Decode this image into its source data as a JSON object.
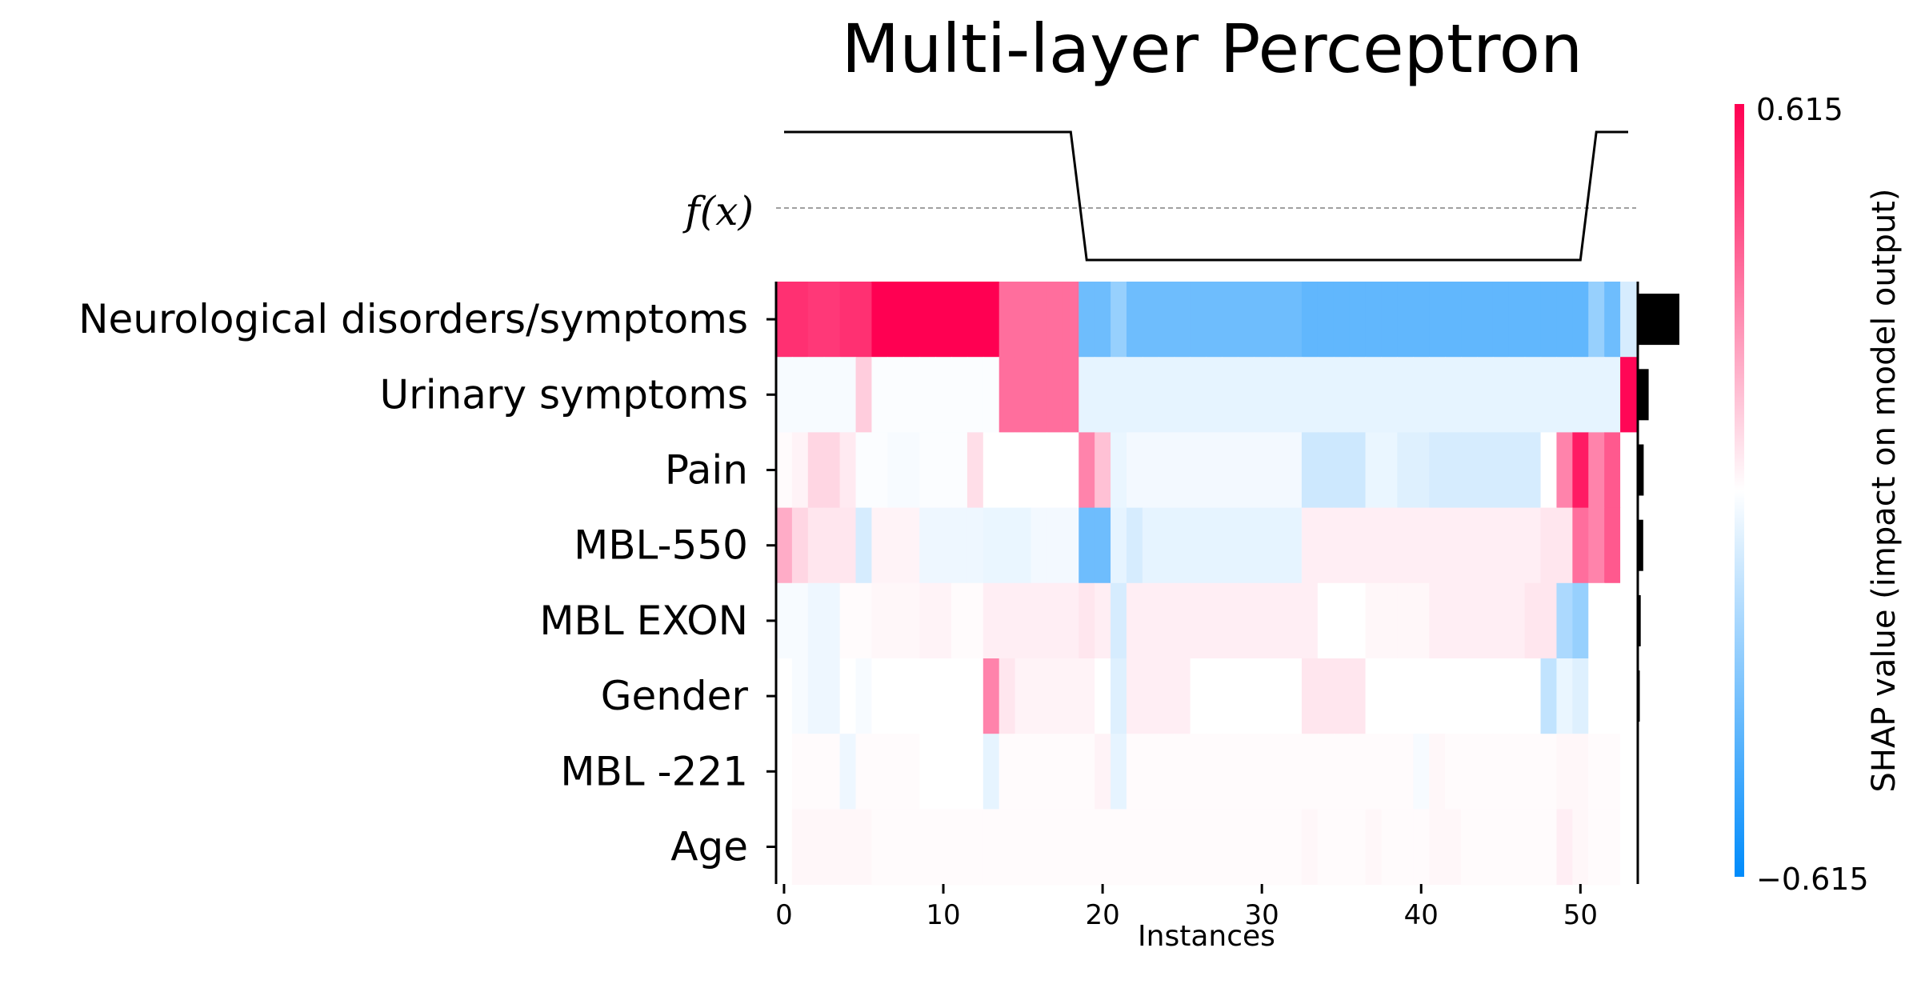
{
  "chart_data": {
    "type": "heatmap",
    "title": "Multi-layer Perceptron",
    "xlabel": "Instances",
    "fx_label": "f(x)",
    "xlim": [
      -0.5,
      53.5
    ],
    "xticks": [
      0,
      10,
      20,
      30,
      40,
      50
    ],
    "xtick_labels": [
      "0",
      "10",
      "20",
      "30",
      "40",
      "50"
    ],
    "colorbar": {
      "label": "SHAP value (impact on model output)",
      "max_label": "0.615",
      "min_label": "−0.615",
      "vmin": -0.615,
      "vmax": 0.615,
      "color_low": "#008bfb",
      "color_mid": "#ffffff",
      "color_high": "#ff0052"
    },
    "features": [
      "Neurological disorders/symptoms",
      "Urinary symptoms",
      "Pain",
      "MBL-550",
      "MBL EXON",
      "Gender",
      "MBL -221",
      "Age"
    ],
    "mean_abs_shap": [
      0.42,
      0.11,
      0.06,
      0.055,
      0.03,
      0.02,
      0.012,
      0.006
    ],
    "fx_levels": "high for instances 0-18 and 51-53, low for instances 19-50",
    "fx_values": [
      0.9,
      0.9,
      0.9,
      0.9,
      0.9,
      0.9,
      0.9,
      0.9,
      0.9,
      0.9,
      0.9,
      0.9,
      0.9,
      0.9,
      0.9,
      0.9,
      0.9,
      0.9,
      0.9,
      0.1,
      0.1,
      0.1,
      0.1,
      0.1,
      0.1,
      0.1,
      0.1,
      0.1,
      0.1,
      0.1,
      0.1,
      0.1,
      0.1,
      0.1,
      0.1,
      0.1,
      0.1,
      0.1,
      0.1,
      0.1,
      0.1,
      0.1,
      0.1,
      0.1,
      0.1,
      0.1,
      0.1,
      0.1,
      0.1,
      0.1,
      0.1,
      0.9,
      0.9,
      0.9
    ],
    "values": [
      [
        0.5,
        0.5,
        0.48,
        0.48,
        0.5,
        0.5,
        0.615,
        0.615,
        0.615,
        0.615,
        0.615,
        0.615,
        0.615,
        0.615,
        0.35,
        0.35,
        0.35,
        0.35,
        0.35,
        -0.35,
        -0.35,
        -0.25,
        -0.35,
        -0.35,
        -0.35,
        -0.35,
        -0.35,
        -0.35,
        -0.35,
        -0.35,
        -0.35,
        -0.35,
        -0.35,
        -0.38,
        -0.38,
        -0.38,
        -0.38,
        -0.38,
        -0.38,
        -0.38,
        -0.38,
        -0.38,
        -0.38,
        -0.38,
        -0.38,
        -0.38,
        -0.38,
        -0.38,
        -0.38,
        -0.38,
        -0.38,
        -0.25,
        -0.35,
        -0.1
      ],
      [
        -0.02,
        -0.02,
        -0.02,
        -0.02,
        -0.02,
        0.12,
        -0.01,
        -0.01,
        -0.01,
        -0.01,
        -0.01,
        -0.01,
        -0.01,
        -0.01,
        0.35,
        0.35,
        0.35,
        0.35,
        0.35,
        -0.06,
        -0.06,
        -0.06,
        -0.06,
        -0.06,
        -0.06,
        -0.06,
        -0.06,
        -0.06,
        -0.06,
        -0.06,
        -0.06,
        -0.06,
        -0.06,
        -0.06,
        -0.06,
        -0.06,
        -0.06,
        -0.06,
        -0.06,
        -0.06,
        -0.06,
        -0.06,
        -0.06,
        -0.06,
        -0.06,
        -0.06,
        -0.06,
        -0.06,
        -0.06,
        -0.06,
        -0.06,
        -0.06,
        -0.06,
        0.6
      ],
      [
        0.01,
        0.03,
        0.1,
        0.1,
        0.05,
        -0.01,
        -0.01,
        -0.02,
        -0.02,
        -0.01,
        -0.01,
        -0.01,
        0.08,
        0.0,
        0.0,
        0.0,
        0.0,
        0.0,
        0.0,
        0.3,
        0.15,
        -0.05,
        -0.03,
        -0.03,
        -0.03,
        -0.03,
        -0.03,
        -0.03,
        -0.03,
        -0.03,
        -0.03,
        -0.03,
        -0.03,
        -0.12,
        -0.12,
        -0.12,
        -0.12,
        -0.05,
        -0.05,
        -0.08,
        -0.08,
        -0.1,
        -0.1,
        -0.1,
        -0.1,
        -0.1,
        -0.1,
        -0.1,
        0.0,
        0.3,
        0.55,
        0.3,
        0.4,
        0.0
      ],
      [
        0.2,
        0.1,
        0.06,
        0.06,
        0.06,
        -0.1,
        0.03,
        0.03,
        0.03,
        -0.04,
        -0.04,
        -0.04,
        -0.04,
        -0.05,
        -0.05,
        -0.05,
        -0.03,
        -0.03,
        -0.03,
        -0.35,
        -0.35,
        -0.06,
        -0.1,
        -0.06,
        -0.06,
        -0.06,
        -0.06,
        -0.06,
        -0.06,
        -0.06,
        -0.06,
        -0.06,
        -0.06,
        0.04,
        0.04,
        0.04,
        0.04,
        0.04,
        0.04,
        0.04,
        0.04,
        0.04,
        0.04,
        0.04,
        0.04,
        0.04,
        0.04,
        0.04,
        0.06,
        0.06,
        0.35,
        0.3,
        0.4,
        0.0
      ],
      [
        -0.02,
        -0.02,
        -0.04,
        -0.04,
        0.01,
        0.01,
        0.02,
        0.02,
        0.02,
        0.03,
        0.03,
        0.01,
        0.01,
        0.04,
        0.04,
        0.04,
        0.04,
        0.04,
        0.04,
        0.06,
        0.04,
        -0.1,
        0.04,
        0.04,
        0.04,
        0.04,
        0.04,
        0.04,
        0.04,
        0.04,
        0.04,
        0.04,
        0.04,
        0.04,
        0.0,
        0.0,
        0.0,
        0.02,
        0.02,
        0.02,
        0.02,
        0.04,
        0.04,
        0.04,
        0.04,
        0.04,
        0.04,
        0.06,
        0.06,
        -0.2,
        -0.25,
        0.0,
        0.0,
        0.0
      ],
      [
        0.0,
        -0.02,
        -0.04,
        -0.04,
        0.0,
        -0.02,
        0.0,
        0.0,
        0.0,
        0.0,
        0.0,
        0.0,
        0.0,
        0.3,
        0.06,
        0.03,
        0.03,
        0.03,
        0.03,
        0.03,
        0.0,
        -0.08,
        0.04,
        0.04,
        0.04,
        0.04,
        0.0,
        0.0,
        0.0,
        0.0,
        0.0,
        0.0,
        0.0,
        0.06,
        0.06,
        0.06,
        0.06,
        0.0,
        0.0,
        0.0,
        0.0,
        0.0,
        0.0,
        0.0,
        0.0,
        0.0,
        0.0,
        0.0,
        -0.15,
        -0.05,
        -0.08,
        0.0,
        0.0,
        0.0
      ],
      [
        0.0,
        0.01,
        0.01,
        0.01,
        -0.04,
        0.01,
        0.01,
        0.01,
        0.01,
        0.0,
        0.0,
        0.0,
        0.0,
        -0.06,
        0.01,
        0.01,
        0.01,
        0.01,
        0.01,
        0.01,
        0.03,
        -0.06,
        0.01,
        0.01,
        0.01,
        0.01,
        0.01,
        0.01,
        0.01,
        0.01,
        0.01,
        0.01,
        0.01,
        0.01,
        0.01,
        0.01,
        0.01,
        0.01,
        0.01,
        0.01,
        -0.02,
        0.02,
        0.01,
        0.01,
        0.01,
        0.01,
        0.01,
        0.01,
        0.01,
        0.02,
        0.02,
        0.01,
        0.01,
        0.0
      ],
      [
        0.0,
        0.02,
        0.02,
        0.02,
        0.02,
        0.02,
        0.01,
        0.01,
        0.01,
        0.01,
        0.01,
        0.01,
        0.01,
        0.01,
        0.01,
        0.01,
        0.01,
        0.01,
        0.01,
        0.01,
        0.01,
        0.01,
        0.01,
        0.01,
        0.01,
        0.01,
        0.01,
        0.01,
        0.01,
        0.01,
        0.01,
        0.01,
        0.01,
        0.02,
        0.01,
        0.01,
        0.01,
        0.02,
        0.01,
        0.01,
        0.01,
        0.02,
        0.02,
        0.01,
        0.01,
        0.01,
        0.01,
        0.01,
        0.01,
        0.04,
        0.02,
        0.01,
        0.01,
        0.0
      ]
    ]
  }
}
